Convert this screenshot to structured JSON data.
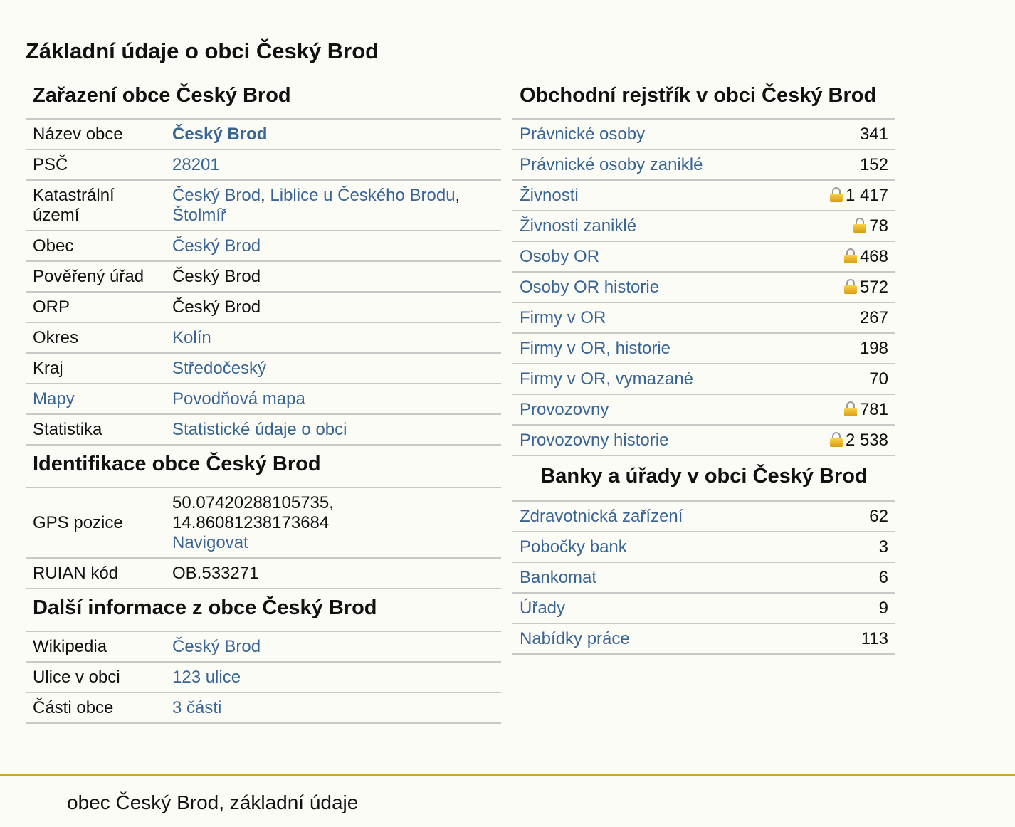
{
  "page_title": "Základní údaje o obci Český Brod",
  "zarazeni": {
    "title": "Zařazení obce Český Brod",
    "nazev_label": "Název obce",
    "nazev_value": "Český Brod",
    "psc_label": "PSČ",
    "psc_value": "28201",
    "katastr_label": "Katastrální území",
    "katastr_links": [
      "Český Brod",
      "Liblice u Českého Brodu",
      "Štolmíř"
    ],
    "obec_label": "Obec",
    "obec_value": "Český Brod",
    "poverny_label": "Pověřený úřad",
    "poverny_value": "Český Brod",
    "orp_label": "ORP",
    "orp_value": "Český Brod",
    "okres_label": "Okres",
    "okres_value": "Kolín",
    "kraj_label": "Kraj",
    "kraj_value": "Středočeský",
    "mapy_label": "Mapy",
    "mapy_value": "Povodňová mapa",
    "statistika_label": "Statistika",
    "statistika_value": "Statistické údaje o obci"
  },
  "identifikace": {
    "title": "Identifikace obce Český Brod",
    "gps_label": "GPS pozice",
    "gps_lat": "50.07420288105735,",
    "gps_lon": "14.86081238173684",
    "gps_link": "Navigovat",
    "ruian_label": "RUIAN kód",
    "ruian_value": "OB.533271"
  },
  "dalsi": {
    "title": "Další informace z obce Český Brod",
    "wiki_label": "Wikipedia",
    "wiki_value": "Český Brod",
    "ulice_label": "Ulice v obci",
    "ulice_value": "123 ulice",
    "casti_label": "Části obce",
    "casti_value": "3 části"
  },
  "rejstrik": {
    "title": "Obchodní rejstřík v obci Český Brod",
    "rows": [
      {
        "label": "Právnické osoby",
        "value": "341",
        "locked": false
      },
      {
        "label": "Právnické osoby zaniklé",
        "value": "152",
        "locked": false
      },
      {
        "label": "Živnosti",
        "value": "1 417",
        "locked": true
      },
      {
        "label": "Živnosti zaniklé",
        "value": "78",
        "locked": true
      },
      {
        "label": "Osoby OR",
        "value": "468",
        "locked": true
      },
      {
        "label": "Osoby OR historie",
        "value": "572",
        "locked": true
      },
      {
        "label": "Firmy v OR",
        "value": "267",
        "locked": false
      },
      {
        "label": "Firmy v OR, historie",
        "value": "198",
        "locked": false
      },
      {
        "label": "Firmy v OR, vymazané",
        "value": "70",
        "locked": false
      },
      {
        "label": "Provozovny",
        "value": "781",
        "locked": true
      },
      {
        "label": "Provozovny historie",
        "value": "2 538",
        "locked": true
      }
    ]
  },
  "banky": {
    "title": "Banky a úřady v obci Český Brod",
    "rows": [
      {
        "label": "Zdravotnická zařízení",
        "value": "62"
      },
      {
        "label": "Pobočky bank",
        "value": "3"
      },
      {
        "label": "Bankomat",
        "value": "6"
      },
      {
        "label": "Úřady",
        "value": "9"
      },
      {
        "label": "Nabídky práce",
        "value": "113"
      }
    ]
  },
  "footer": {
    "text": "obec Český Brod, základní údaje"
  },
  "colors": {
    "link": "#3a6592",
    "footer_line": "#d4a52a",
    "border": "#c8c8c8"
  }
}
